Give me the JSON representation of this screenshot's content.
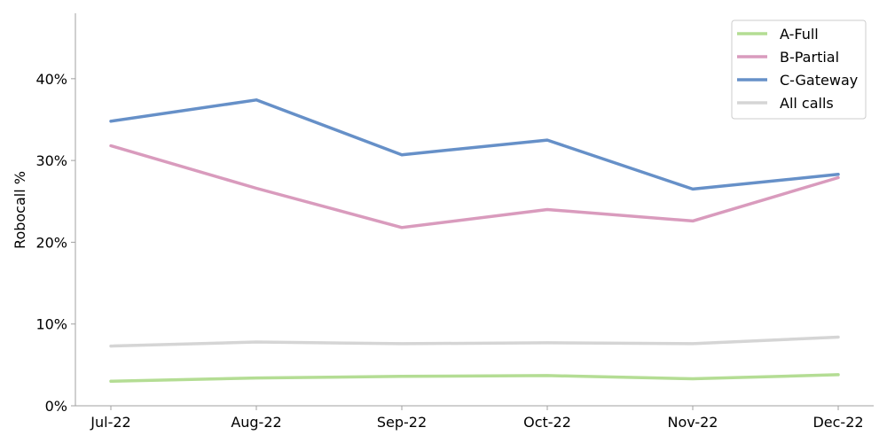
{
  "chart_data": {
    "type": "line",
    "title": "",
    "xlabel": "",
    "ylabel": "Robocall %",
    "categories": [
      "Jul-22",
      "Aug-22",
      "Sep-22",
      "Oct-22",
      "Nov-22",
      "Dec-22"
    ],
    "ylim": [
      0,
      48
    ],
    "yticks": [
      0,
      10,
      20,
      30,
      40
    ],
    "ytick_labels": [
      "0%",
      "10%",
      "20%",
      "30%",
      "40%"
    ],
    "grid": false,
    "legend_position": "top-right",
    "series": [
      {
        "name": "A-Full",
        "color": "#b4dd94",
        "values": [
          3.0,
          3.4,
          3.6,
          3.7,
          3.3,
          3.8
        ]
      },
      {
        "name": "B-Partial",
        "color": "#d99bbd",
        "values": [
          31.8,
          26.6,
          21.8,
          24.0,
          22.6,
          27.9
        ]
      },
      {
        "name": "C-Gateway",
        "color": "#6690c8",
        "values": [
          34.8,
          37.4,
          30.7,
          32.5,
          26.5,
          28.3
        ]
      },
      {
        "name": "All calls",
        "color": "#d5d5d5",
        "values": [
          7.3,
          7.8,
          7.6,
          7.7,
          7.6,
          8.4
        ]
      }
    ]
  }
}
